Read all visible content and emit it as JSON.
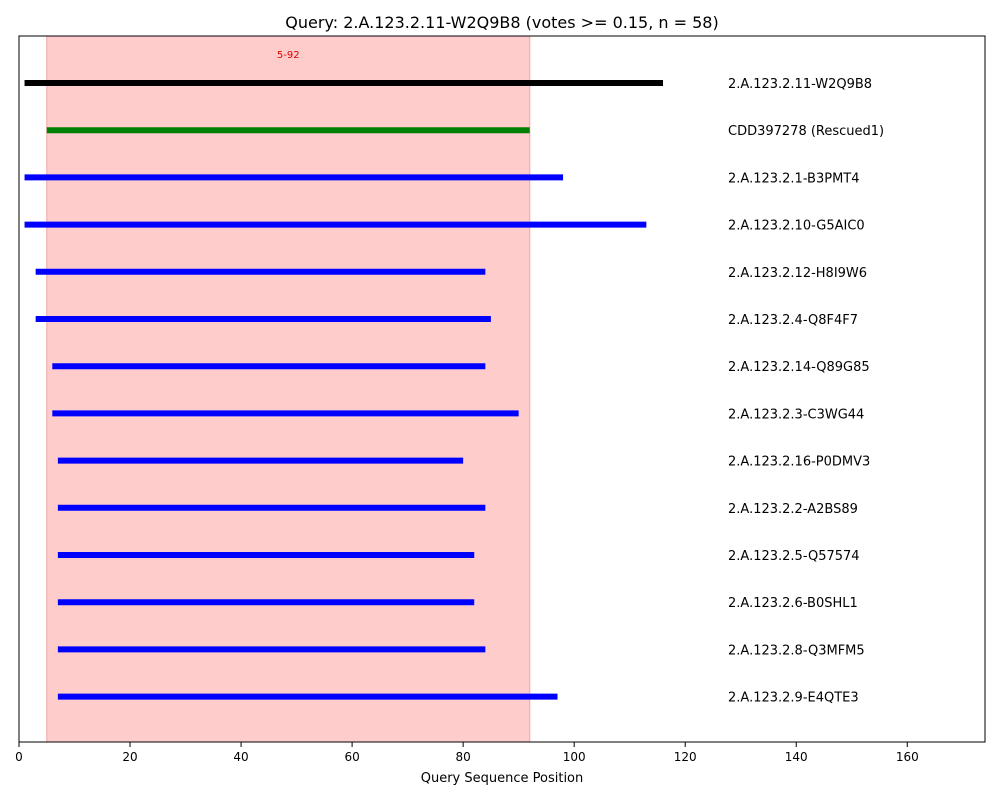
{
  "chart_data": {
    "type": "segment",
    "title": "Query: 2.A.123.2.11-W2Q9B8 (votes >= 0.15, n = 58)",
    "xlabel": "Query Sequence Position",
    "ylabel": "",
    "xlim": [
      0,
      174
    ],
    "xticks": [
      0,
      20,
      40,
      60,
      80,
      100,
      120,
      140,
      160
    ],
    "grid": false,
    "highlight": {
      "start": 5,
      "end": 92,
      "label": "5-92",
      "color": "#ffcccc"
    },
    "series": [
      {
        "name": "2.A.123.2.11-W2Q9B8",
        "start": 1,
        "end": 116,
        "color": "#000000"
      },
      {
        "name": "CDD397278 (Rescued1)",
        "start": 5,
        "end": 92,
        "color": "#008000"
      },
      {
        "name": "2.A.123.2.1-B3PMT4",
        "start": 1,
        "end": 98,
        "color": "#0000ff"
      },
      {
        "name": "2.A.123.2.10-G5AIC0",
        "start": 1,
        "end": 113,
        "color": "#0000ff"
      },
      {
        "name": "2.A.123.2.12-H8I9W6",
        "start": 3,
        "end": 84,
        "color": "#0000ff"
      },
      {
        "name": "2.A.123.2.4-Q8F4F7",
        "start": 3,
        "end": 85,
        "color": "#0000ff"
      },
      {
        "name": "2.A.123.2.14-Q89G85",
        "start": 6,
        "end": 84,
        "color": "#0000ff"
      },
      {
        "name": "2.A.123.2.3-C3WG44",
        "start": 6,
        "end": 90,
        "color": "#0000ff"
      },
      {
        "name": "2.A.123.2.16-P0DMV3",
        "start": 7,
        "end": 80,
        "color": "#0000ff"
      },
      {
        "name": "2.A.123.2.2-A2BS89",
        "start": 7,
        "end": 84,
        "color": "#0000ff"
      },
      {
        "name": "2.A.123.2.5-Q57574",
        "start": 7,
        "end": 82,
        "color": "#0000ff"
      },
      {
        "name": "2.A.123.2.6-B0SHL1",
        "start": 7,
        "end": 82,
        "color": "#0000ff"
      },
      {
        "name": "2.A.123.2.8-Q3MFM5",
        "start": 7,
        "end": 84,
        "color": "#0000ff"
      },
      {
        "name": "2.A.123.2.9-E4QTE3",
        "start": 7,
        "end": 97,
        "color": "#0000ff"
      }
    ]
  }
}
